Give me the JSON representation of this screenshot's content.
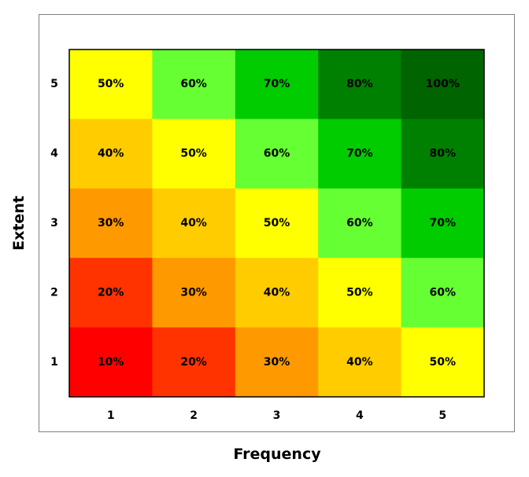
{
  "chart_data": {
    "type": "heatmap",
    "title": "",
    "xlabel": "Frequency",
    "ylabel": "Extent",
    "x_categories": [
      "1",
      "2",
      "3",
      "4",
      "5"
    ],
    "y_categories": [
      "1",
      "2",
      "3",
      "4",
      "5"
    ],
    "cells": [
      {
        "x": "1",
        "y": "5",
        "label": "50%",
        "value": 50,
        "color": "#ffff00"
      },
      {
        "x": "2",
        "y": "5",
        "label": "60%",
        "value": 60,
        "color": "#66ff33"
      },
      {
        "x": "3",
        "y": "5",
        "label": "70%",
        "value": 70,
        "color": "#00cc00"
      },
      {
        "x": "4",
        "y": "5",
        "label": "80%",
        "value": 80,
        "color": "#008000"
      },
      {
        "x": "5",
        "y": "5",
        "label": "100%",
        "value": 100,
        "color": "#006400"
      },
      {
        "x": "1",
        "y": "4",
        "label": "40%",
        "value": 40,
        "color": "#ffcc00"
      },
      {
        "x": "2",
        "y": "4",
        "label": "50%",
        "value": 50,
        "color": "#ffff00"
      },
      {
        "x": "3",
        "y": "4",
        "label": "60%",
        "value": 60,
        "color": "#66ff33"
      },
      {
        "x": "4",
        "y": "4",
        "label": "70%",
        "value": 70,
        "color": "#00cc00"
      },
      {
        "x": "5",
        "y": "4",
        "label": "80%",
        "value": 80,
        "color": "#008000"
      },
      {
        "x": "1",
        "y": "3",
        "label": "30%",
        "value": 30,
        "color": "#ff9900"
      },
      {
        "x": "2",
        "y": "3",
        "label": "40%",
        "value": 40,
        "color": "#ffcc00"
      },
      {
        "x": "3",
        "y": "3",
        "label": "50%",
        "value": 50,
        "color": "#ffff00"
      },
      {
        "x": "4",
        "y": "3",
        "label": "60%",
        "value": 60,
        "color": "#66ff33"
      },
      {
        "x": "5",
        "y": "3",
        "label": "70%",
        "value": 70,
        "color": "#00cc00"
      },
      {
        "x": "1",
        "y": "2",
        "label": "20%",
        "value": 20,
        "color": "#ff3300"
      },
      {
        "x": "2",
        "y": "2",
        "label": "30%",
        "value": 30,
        "color": "#ff9900"
      },
      {
        "x": "3",
        "y": "2",
        "label": "40%",
        "value": 40,
        "color": "#ffcc00"
      },
      {
        "x": "4",
        "y": "2",
        "label": "50%",
        "value": 50,
        "color": "#ffff00"
      },
      {
        "x": "5",
        "y": "2",
        "label": "60%",
        "value": 60,
        "color": "#66ff33"
      },
      {
        "x": "1",
        "y": "1",
        "label": "10%",
        "value": 10,
        "color": "#ff0000"
      },
      {
        "x": "2",
        "y": "1",
        "label": "20%",
        "value": 20,
        "color": "#ff3300"
      },
      {
        "x": "3",
        "y": "1",
        "label": "30%",
        "value": 30,
        "color": "#ff9900"
      },
      {
        "x": "4",
        "y": "1",
        "label": "40%",
        "value": 40,
        "color": "#ffcc00"
      },
      {
        "x": "5",
        "y": "1",
        "label": "50%",
        "value": 50,
        "color": "#ffff00"
      }
    ],
    "grid": false,
    "legend": "none",
    "frame_color": "#7f7f7f",
    "plot_border_color": "#000000"
  }
}
